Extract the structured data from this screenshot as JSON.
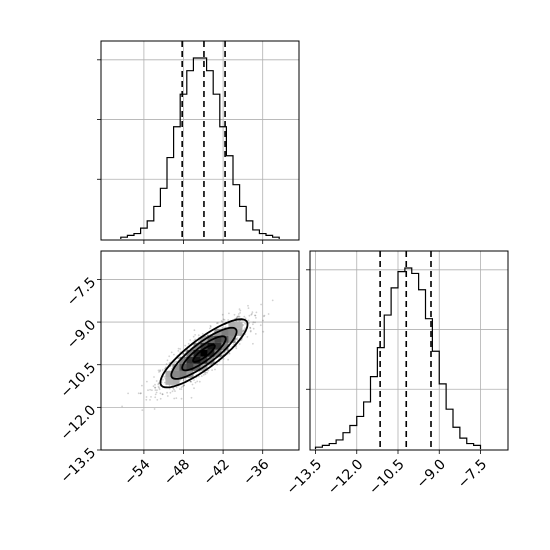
{
  "chart_data": [
    {
      "type": "bar",
      "panel": "marginal-x",
      "bins": [
        -57.5,
        -56.5,
        -55.5,
        -54.5,
        -53.5,
        -52.5,
        -51.5,
        -50.5,
        -49.5,
        -48.5,
        -47.5,
        -46.5,
        -45.5,
        -44.5,
        -43.5,
        -42.5,
        -41.5,
        -40.5,
        -39.5,
        -38.5,
        -37.5,
        -36.5,
        -35.5,
        -34.5,
        -33.5
      ],
      "counts": [
        1,
        2,
        3,
        6,
        10,
        18,
        28,
        45,
        62,
        80,
        93,
        100,
        100,
        93,
        80,
        62,
        46,
        30,
        18,
        10,
        5,
        3,
        2,
        1
      ],
      "quantiles": [
        -48.2,
        -44.9,
        -41.7
      ],
      "xlim": [
        -60.5,
        -30.5
      ],
      "grid": true
    },
    {
      "type": "heatmap",
      "panel": "joint",
      "xlabel_ticks": [
        "−54",
        "−48",
        "−42",
        "−36"
      ],
      "x_ticks": [
        -54,
        -48,
        -42,
        -36
      ],
      "ylabel_ticks": [
        "−7.5",
        "−9.0",
        "−10.5",
        "−12.0",
        "−13.5"
      ],
      "y_ticks": [
        -7.5,
        -9.0,
        -10.5,
        -12.0,
        -13.5
      ],
      "xlim": [
        -60.5,
        -30.5
      ],
      "ylim": [
        -13.5,
        -6.5
      ],
      "mean": [
        -44.9,
        -10.1
      ],
      "std": [
        3.3,
        0.6
      ],
      "correlation": 0.85,
      "contour_levels": [
        0.5,
        1.0,
        1.5,
        2.0
      ],
      "grid": true
    },
    {
      "type": "bar",
      "panel": "marginal-y",
      "xlabel_ticks": [
        "−13.5",
        "−12.0",
        "−10.5",
        "−9.0",
        "−7.5"
      ],
      "x_ticks": [
        -13.5,
        -12.0,
        -10.5,
        -9.0,
        -7.5
      ],
      "bins": [
        -13.5,
        -13.25,
        -13.0,
        -12.75,
        -12.5,
        -12.25,
        -12.0,
        -11.75,
        -11.5,
        -11.25,
        -11.0,
        -10.75,
        -10.5,
        -10.25,
        -10.0,
        -9.75,
        -9.5,
        -9.25,
        -9.0,
        -8.75,
        -8.5,
        -8.25,
        -8.0,
        -7.75,
        -7.5
      ],
      "counts": [
        1,
        2,
        3,
        5,
        9,
        13,
        18,
        26,
        40,
        56,
        74,
        89,
        98,
        100,
        97,
        88,
        72,
        54,
        36,
        22,
        12,
        6,
        3,
        2
      ],
      "quantiles": [
        -11.15,
        -10.2,
        -9.3
      ],
      "xlim": [
        -13.7,
        -6.5
      ],
      "grid": true
    }
  ]
}
